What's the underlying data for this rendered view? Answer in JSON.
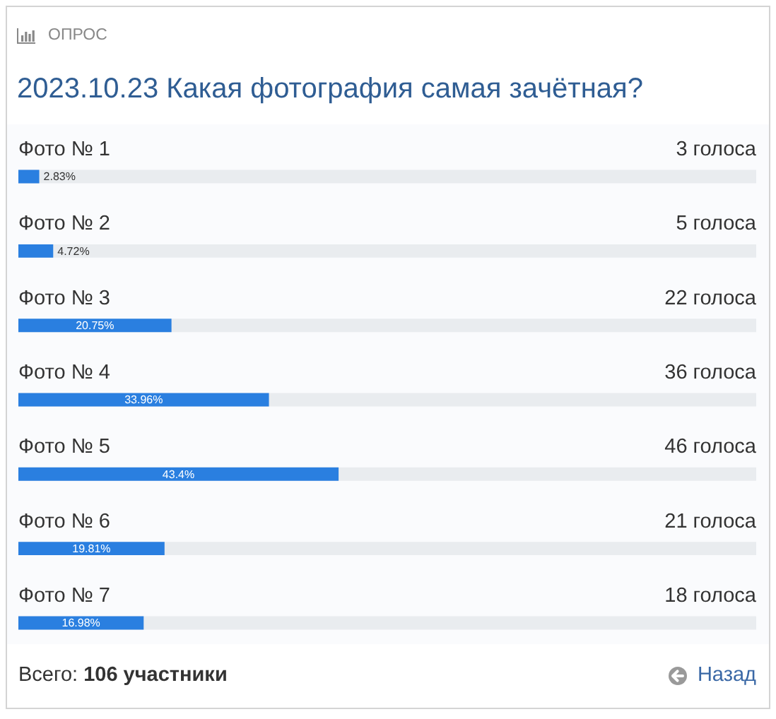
{
  "chart_data": {
    "type": "bar",
    "orientation": "horizontal",
    "title": "2023.10.23 Какая фотография самая зачётная?",
    "categories": [
      "Фото № 1",
      "Фото № 2",
      "Фото № 3",
      "Фото № 4",
      "Фото № 5",
      "Фото № 6",
      "Фото № 7"
    ],
    "values": [
      2.83,
      4.72,
      20.75,
      33.96,
      43.4,
      19.81,
      16.98
    ],
    "value_labels": [
      "2.83%",
      "4.72%",
      "20.75%",
      "33.96%",
      "43.4%",
      "19.81%",
      "16.98%"
    ],
    "color": "#2a7fe0",
    "xlim": [
      0,
      100
    ],
    "tick_labels": "y",
    "annotations": [
      "ОПРОС",
      "3 голоса",
      "5 голоса",
      "22 голоса",
      "36 голоса",
      "46 голоса",
      "21 голоса",
      "18 голоса",
      "Всего: 106 участники",
      "Назад"
    ]
  }
}
